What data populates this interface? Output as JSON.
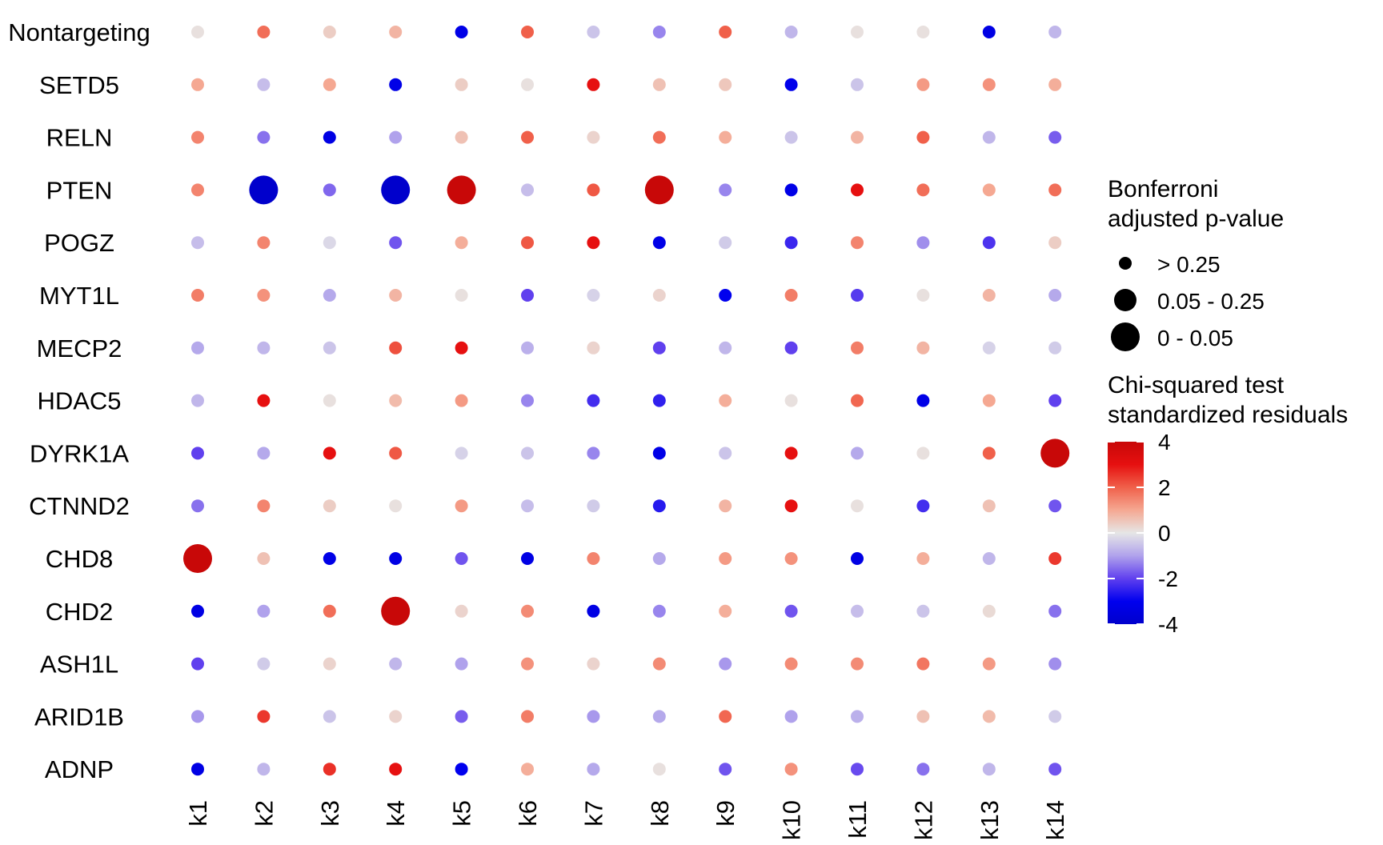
{
  "chart_data": {
    "type": "dot-matrix",
    "title": "",
    "xlabel": "",
    "ylabel": "",
    "x_categories": [
      "k1",
      "k2",
      "k3",
      "k4",
      "k5",
      "k6",
      "k7",
      "k8",
      "k9",
      "k10",
      "k11",
      "k12",
      "k13",
      "k14"
    ],
    "y_categories": [
      "Nontargeting",
      "SETD5",
      "RELN",
      "PTEN",
      "POGZ",
      "MYT1L",
      "MECP2",
      "HDAC5",
      "DYRK1A",
      "CTNND2",
      "CHD8",
      "CHD2",
      "ASH1L",
      "ARID1B",
      "ADNP"
    ],
    "rows": [
      {
        "name": "Nontargeting",
        "residuals": [
          0.1,
          1.8,
          0.4,
          0.8,
          -3.2,
          2.0,
          -0.5,
          -1.3,
          2.0,
          -0.7,
          0.1,
          0.1,
          -3.3,
          -0.7
        ]
      },
      {
        "name": "SETD5",
        "residuals": [
          1.0,
          -0.6,
          1.0,
          -3.2,
          0.4,
          0.1,
          3.0,
          0.6,
          0.5,
          -3.1,
          -0.5,
          1.2,
          1.3,
          0.9
        ]
      },
      {
        "name": "RELN",
        "residuals": [
          1.5,
          -1.5,
          -3.3,
          -1.0,
          0.6,
          2.0,
          0.3,
          1.8,
          0.9,
          -0.5,
          0.8,
          2.0,
          -0.7,
          -1.7
        ]
      },
      {
        "name": "PTEN",
        "residuals": [
          1.5,
          -4.0,
          -1.6,
          -4.0,
          4.0,
          -0.6,
          2.1,
          4.0,
          -1.3,
          -3.2,
          3.0,
          1.8,
          1.0,
          1.8
        ]
      },
      {
        "name": "POGZ",
        "residuals": [
          -0.6,
          1.5,
          -0.2,
          -1.8,
          0.9,
          2.1,
          3.0,
          -3.2,
          -0.4,
          -2.4,
          1.5,
          -1.2,
          -2.2,
          0.4
        ]
      },
      {
        "name": "MYT1L",
        "residuals": [
          1.6,
          1.3,
          -0.9,
          0.8,
          0.1,
          -2.0,
          -0.3,
          0.3,
          -3.0,
          1.6,
          -2.1,
          0.1,
          0.8,
          -0.9
        ]
      },
      {
        "name": "MECP2",
        "residuals": [
          -0.9,
          -0.7,
          -0.5,
          2.2,
          3.0,
          -0.8,
          0.3,
          -2.0,
          -0.7,
          -2.0,
          1.6,
          0.8,
          -0.3,
          -0.4
        ]
      },
      {
        "name": "HDAC5",
        "residuals": [
          -0.7,
          3.0,
          0.1,
          0.7,
          1.2,
          -1.3,
          -2.3,
          -2.5,
          0.9,
          0.1,
          1.9,
          -3.2,
          1.0,
          -2.0
        ]
      },
      {
        "name": "DYRK1A",
        "residuals": [
          -2.0,
          -0.9,
          3.0,
          2.1,
          -0.3,
          -0.5,
          -1.3,
          -3.2,
          -0.5,
          3.0,
          -0.9,
          0.1,
          2.0,
          4.0
        ]
      },
      {
        "name": "CTNND2",
        "residuals": [
          -1.5,
          1.5,
          0.4,
          0.1,
          1.2,
          -0.6,
          -0.4,
          -2.6,
          0.8,
          3.0,
          0.1,
          -2.3,
          0.6,
          -1.8
        ]
      },
      {
        "name": "CHD8",
        "residuals": [
          4.0,
          0.6,
          -3.2,
          -3.3,
          -1.8,
          -3.3,
          1.5,
          -0.9,
          1.2,
          1.3,
          -3.3,
          0.9,
          -0.7,
          2.5
        ]
      },
      {
        "name": "CHD2",
        "residuals": [
          -3.3,
          -1.0,
          1.8,
          4.0,
          0.3,
          1.4,
          -3.3,
          -1.3,
          0.9,
          -1.8,
          -0.6,
          -0.5,
          0.2,
          -1.5
        ]
      },
      {
        "name": "ASH1L",
        "residuals": [
          -2.0,
          -0.4,
          0.3,
          -0.7,
          -1.0,
          1.3,
          0.3,
          1.4,
          -1.1,
          1.4,
          1.4,
          1.7,
          1.2,
          -1.2
        ]
      },
      {
        "name": "ARID1B",
        "residuals": [
          -1.1,
          2.5,
          -0.5,
          0.3,
          -1.7,
          1.6,
          -1.1,
          -0.9,
          1.9,
          -1.0,
          -0.8,
          0.6,
          0.7,
          -0.4
        ]
      },
      {
        "name": "ADNP",
        "residuals": [
          -3.3,
          -0.7,
          2.6,
          3.0,
          -3.0,
          0.9,
          -0.9,
          0.1,
          -1.8,
          1.3,
          -1.9,
          -1.5,
          -0.7,
          -1.8
        ]
      }
    ],
    "large_dots": [
      {
        "row": "PTEN",
        "col": "k2"
      },
      {
        "row": "PTEN",
        "col": "k4"
      },
      {
        "row": "PTEN",
        "col": "k5"
      },
      {
        "row": "PTEN",
        "col": "k8"
      },
      {
        "row": "DYRK1A",
        "col": "k14"
      },
      {
        "row": "CHD8",
        "col": "k1"
      },
      {
        "row": "CHD2",
        "col": "k4"
      }
    ],
    "color_scale": {
      "min": -4,
      "max": 4,
      "stops": [
        {
          "value": -4,
          "color": "#0000cc"
        },
        {
          "value": -3,
          "color": "#0000ee"
        },
        {
          "value": -2,
          "color": "#6040ee"
        },
        {
          "value": -1,
          "color": "#b0a2ec"
        },
        {
          "value": 0,
          "color": "#e6e6e6"
        },
        {
          "value": 1,
          "color": "#f5a892"
        },
        {
          "value": 2,
          "color": "#f0604a"
        },
        {
          "value": 3,
          "color": "#e61010"
        },
        {
          "value": 4,
          "color": "#c80808"
        }
      ]
    },
    "size_legend": {
      "title_lines": [
        "Bonferroni",
        "adjusted p-value"
      ],
      "items": [
        {
          "label": "> 0.25"
        },
        {
          "label": "0.05 - 0.25"
        },
        {
          "label": "0 - 0.05"
        }
      ]
    },
    "color_legend": {
      "title_lines": [
        "Chi-squared test",
        "standardized residuals"
      ],
      "ticks": [
        "4",
        "2",
        "0",
        "-2",
        "-4"
      ]
    }
  }
}
